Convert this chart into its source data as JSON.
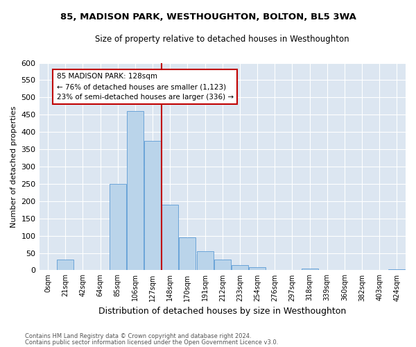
{
  "title1": "85, MADISON PARK, WESTHOUGHTON, BOLTON, BL5 3WA",
  "title2": "Size of property relative to detached houses in Westhoughton",
  "xlabel": "Distribution of detached houses by size in Westhoughton",
  "ylabel": "Number of detached properties",
  "categories": [
    "0sqm",
    "21sqm",
    "42sqm",
    "64sqm",
    "85sqm",
    "106sqm",
    "127sqm",
    "148sqm",
    "170sqm",
    "191sqm",
    "212sqm",
    "233sqm",
    "254sqm",
    "276sqm",
    "297sqm",
    "318sqm",
    "339sqm",
    "360sqm",
    "382sqm",
    "403sqm",
    "424sqm"
  ],
  "values": [
    0,
    30,
    0,
    0,
    250,
    460,
    375,
    190,
    95,
    55,
    30,
    15,
    8,
    0,
    0,
    5,
    0,
    0,
    0,
    0,
    2
  ],
  "bar_color": "#bad4ea",
  "bar_edge_color": "#5b9bd5",
  "vline_x_index": 6.5,
  "vline_color": "#c00000",
  "annotation_title": "85 MADISON PARK: 128sqm",
  "annotation_line1": "← 76% of detached houses are smaller (1,123)",
  "annotation_line2": "23% of semi-detached houses are larger (336) →",
  "annotation_box_color": "#ffffff",
  "annotation_box_edge": "#c00000",
  "ylim": [
    0,
    600
  ],
  "yticks": [
    0,
    50,
    100,
    150,
    200,
    250,
    300,
    350,
    400,
    450,
    500,
    550,
    600
  ],
  "footer1": "Contains HM Land Registry data © Crown copyright and database right 2024.",
  "footer2": "Contains public sector information licensed under the Open Government Licence v3.0.",
  "bg_color": "#dce6f1",
  "fig_width": 6.0,
  "fig_height": 5.0
}
